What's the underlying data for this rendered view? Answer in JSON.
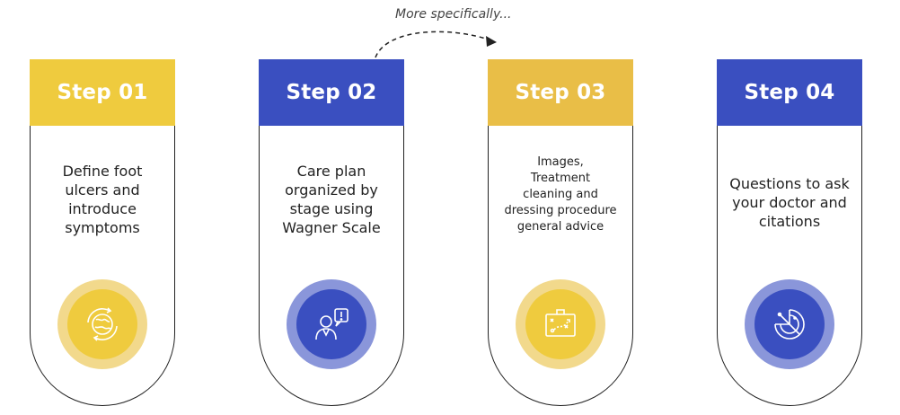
{
  "annotation": {
    "text": "More specifically..."
  },
  "steps": [
    {
      "label": "Step 01",
      "text": "Define foot\nulcers and\nintroduce\nsymptoms",
      "header_color": "#EFCB3E",
      "ring_color": "#F2D98C",
      "inner_color": "#EFCB3E",
      "icon": "globe-cycle-icon"
    },
    {
      "label": "Step 02",
      "text": "Care plan\norganized by\nstage using\nWagner Scale",
      "header_color": "#3A4FC0",
      "ring_color": "#8A96DA",
      "inner_color": "#3A4FC0",
      "icon": "person-alert-icon"
    },
    {
      "label": "Step 03",
      "text": "Images,\nTreatment\ncleaning and\ndressing procedure\ngeneral advice",
      "header_color": "#E9BE47",
      "ring_color": "#F2D98C",
      "inner_color": "#EFCB3E",
      "icon": "strategy-board-icon"
    },
    {
      "label": "Step 04",
      "text": "Questions to ask\nyour doctor and\ncitations",
      "header_color": "#3A4FC0",
      "ring_color": "#8A96DA",
      "inner_color": "#3A4FC0",
      "icon": "radar-icon"
    }
  ]
}
